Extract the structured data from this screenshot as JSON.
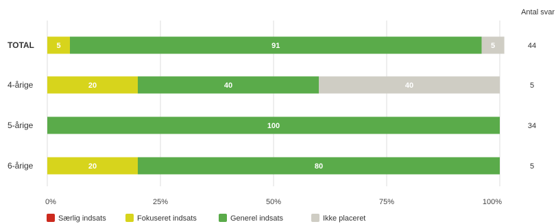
{
  "chart_data": {
    "type": "bar",
    "orientation": "horizontal",
    "stacked": true,
    "categories": [
      "TOTAL",
      "4-årige",
      "5-årige",
      "6-årige"
    ],
    "series": [
      {
        "name": "Særlig indsats",
        "color": "#cc2a1e",
        "values": [
          0,
          0,
          0,
          0
        ]
      },
      {
        "name": "Fokuseret indsats",
        "color": "#d7d41c",
        "values": [
          5,
          20,
          0,
          20
        ]
      },
      {
        "name": "Generel indsats",
        "color": "#5aab4a",
        "values": [
          91,
          40,
          100,
          80
        ]
      },
      {
        "name": "Ikke placeret",
        "color": "#cfcdc4",
        "values": [
          5,
          40,
          0,
          0
        ]
      }
    ],
    "count_header": "Antal svar",
    "counts": [
      "44",
      "5",
      "34",
      "5"
    ],
    "x_ticks": [
      "0%",
      "25%",
      "50%",
      "75%",
      "100%"
    ],
    "xlim": [
      0,
      100
    ],
    "grid": true,
    "legend_position": "bottom-left"
  }
}
